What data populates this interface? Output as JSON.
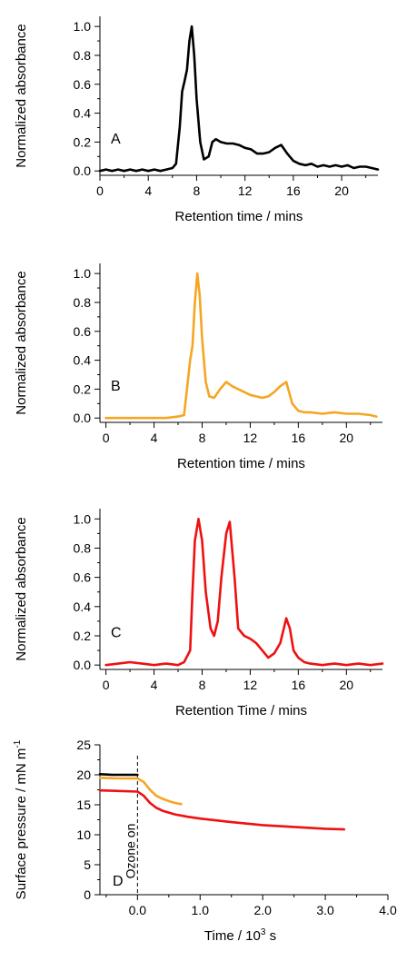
{
  "chart_data": [
    {
      "type": "line",
      "panel_label": "A",
      "xlabel": "Retention time / mins",
      "ylabel": "Normalized absorbance",
      "xlim": [
        0,
        23
      ],
      "ylim": [
        -0.03,
        1.07
      ],
      "xticks": [
        "0",
        "4",
        "8",
        "12",
        "16",
        "20"
      ],
      "yticks": [
        "0.0",
        "0.2",
        "0.4",
        "0.6",
        "0.8",
        "1.0"
      ],
      "grid": false,
      "series": [
        {
          "color": "#000000",
          "x": [
            0,
            0.5,
            1,
            1.5,
            2,
            2.5,
            3,
            3.5,
            4,
            4.5,
            5,
            5.5,
            6,
            6.3,
            6.6,
            6.8,
            7.0,
            7.2,
            7.4,
            7.6,
            7.8,
            8.0,
            8.3,
            8.6,
            9.0,
            9.3,
            9.6,
            10.0,
            10.5,
            11.0,
            11.5,
            12.0,
            12.5,
            13.0,
            13.5,
            14.0,
            14.5,
            15.0,
            15.5,
            16.0,
            16.5,
            17.0,
            17.5,
            18.0,
            18.5,
            19.0,
            19.5,
            20.0,
            20.5,
            21.0,
            21.5,
            22.0,
            22.5,
            23.0
          ],
          "y": [
            0.0,
            0.01,
            0.0,
            0.01,
            0.0,
            0.01,
            0.0,
            0.01,
            0.0,
            0.01,
            0.0,
            0.01,
            0.02,
            0.05,
            0.3,
            0.55,
            0.62,
            0.7,
            0.9,
            1.0,
            0.8,
            0.5,
            0.2,
            0.08,
            0.1,
            0.2,
            0.22,
            0.2,
            0.19,
            0.19,
            0.18,
            0.16,
            0.15,
            0.12,
            0.12,
            0.13,
            0.16,
            0.18,
            0.12,
            0.07,
            0.05,
            0.04,
            0.05,
            0.03,
            0.04,
            0.03,
            0.04,
            0.03,
            0.04,
            0.02,
            0.03,
            0.03,
            0.02,
            0.01
          ]
        }
      ]
    },
    {
      "type": "line",
      "panel_label": "B",
      "xlabel": "Retention time / mins",
      "ylabel": "Normalized absorbance",
      "xlim": [
        -0.5,
        23
      ],
      "ylim": [
        -0.03,
        1.07
      ],
      "xticks": [
        "0",
        "4",
        "8",
        "12",
        "16",
        "20"
      ],
      "yticks": [
        "0.0",
        "0.2",
        "0.4",
        "0.6",
        "0.8",
        "1.0"
      ],
      "grid": false,
      "series": [
        {
          "color": "#F5A623",
          "x": [
            0,
            1,
            2,
            3,
            4,
            5,
            6,
            6.5,
            7.0,
            7.2,
            7.4,
            7.6,
            7.8,
            8.0,
            8.3,
            8.6,
            9.0,
            9.5,
            10.0,
            10.5,
            11.0,
            11.5,
            12.0,
            12.5,
            13.0,
            13.5,
            14.0,
            14.5,
            15.0,
            15.5,
            16.0,
            16.5,
            17,
            18,
            19,
            20,
            21,
            22,
            22.5
          ],
          "y": [
            0.0,
            0.0,
            0.0,
            0.0,
            0.0,
            0.0,
            0.01,
            0.02,
            0.4,
            0.5,
            0.8,
            1.0,
            0.85,
            0.55,
            0.25,
            0.15,
            0.14,
            0.2,
            0.25,
            0.22,
            0.2,
            0.18,
            0.16,
            0.15,
            0.14,
            0.15,
            0.18,
            0.22,
            0.25,
            0.1,
            0.05,
            0.04,
            0.04,
            0.03,
            0.04,
            0.03,
            0.03,
            0.02,
            0.01
          ]
        }
      ]
    },
    {
      "type": "line",
      "panel_label": "C",
      "xlabel": "Retention Time / mins",
      "ylabel": "Normalized absorbance",
      "xlim": [
        -0.5,
        23
      ],
      "ylim": [
        -0.03,
        1.07
      ],
      "xticks": [
        "0",
        "4",
        "8",
        "12",
        "16",
        "20"
      ],
      "yticks": [
        "0.0",
        "0.2",
        "0.4",
        "0.6",
        "0.8",
        "1.0"
      ],
      "grid": false,
      "series": [
        {
          "color": "#EE1111",
          "x": [
            0,
            1,
            2,
            3,
            4,
            5,
            6,
            6.5,
            7.0,
            7.2,
            7.4,
            7.7,
            8.0,
            8.3,
            8.7,
            9.0,
            9.3,
            9.6,
            10.0,
            10.3,
            10.7,
            11.0,
            11.5,
            12.0,
            12.5,
            13.0,
            13.5,
            14.0,
            14.5,
            15.0,
            15.3,
            15.6,
            16.0,
            16.5,
            17,
            18,
            19,
            20,
            21,
            22,
            23
          ],
          "y": [
            0.0,
            0.01,
            0.02,
            0.01,
            0.0,
            0.01,
            0.0,
            0.02,
            0.1,
            0.5,
            0.85,
            1.0,
            0.85,
            0.5,
            0.25,
            0.2,
            0.3,
            0.6,
            0.9,
            0.98,
            0.6,
            0.25,
            0.2,
            0.18,
            0.15,
            0.1,
            0.05,
            0.08,
            0.15,
            0.32,
            0.25,
            0.1,
            0.05,
            0.02,
            0.01,
            0.0,
            0.01,
            0.0,
            0.01,
            0.0,
            0.01
          ]
        }
      ]
    },
    {
      "type": "line",
      "panel_label": "D",
      "xlabel": "Time / 10^3 s",
      "ylabel": "Surface pressure / mN m^-1",
      "xlim": [
        -0.6,
        4.0
      ],
      "ylim": [
        0,
        25
      ],
      "xticks": [
        "0.0",
        "1.0",
        "2.0",
        "3.0",
        "4.0"
      ],
      "yticks": [
        "0",
        "5",
        "10",
        "15",
        "20",
        "25"
      ],
      "grid": false,
      "annotations": [
        {
          "text": "Ozone on",
          "x": 0.0,
          "style": "dashed vertical line"
        }
      ],
      "series": [
        {
          "color": "#000000",
          "x": [
            -0.6,
            -0.4,
            -0.2,
            0.0
          ],
          "y": [
            20.1,
            20.0,
            20.0,
            20.0
          ]
        },
        {
          "color": "#F5A623",
          "x": [
            -0.6,
            -0.3,
            0.0,
            0.1,
            0.2,
            0.3,
            0.4,
            0.5,
            0.6,
            0.7
          ],
          "y": [
            19.5,
            19.4,
            19.4,
            18.8,
            17.5,
            16.5,
            16.0,
            15.6,
            15.3,
            15.1
          ]
        },
        {
          "color": "#EE1111",
          "x": [
            -0.6,
            -0.3,
            0.0,
            0.1,
            0.2,
            0.3,
            0.4,
            0.6,
            0.8,
            1.0,
            1.5,
            2.0,
            2.5,
            3.0,
            3.3
          ],
          "y": [
            17.4,
            17.3,
            17.2,
            16.5,
            15.3,
            14.5,
            14.0,
            13.4,
            13.0,
            12.7,
            12.1,
            11.6,
            11.3,
            11.0,
            10.9
          ]
        }
      ]
    }
  ]
}
